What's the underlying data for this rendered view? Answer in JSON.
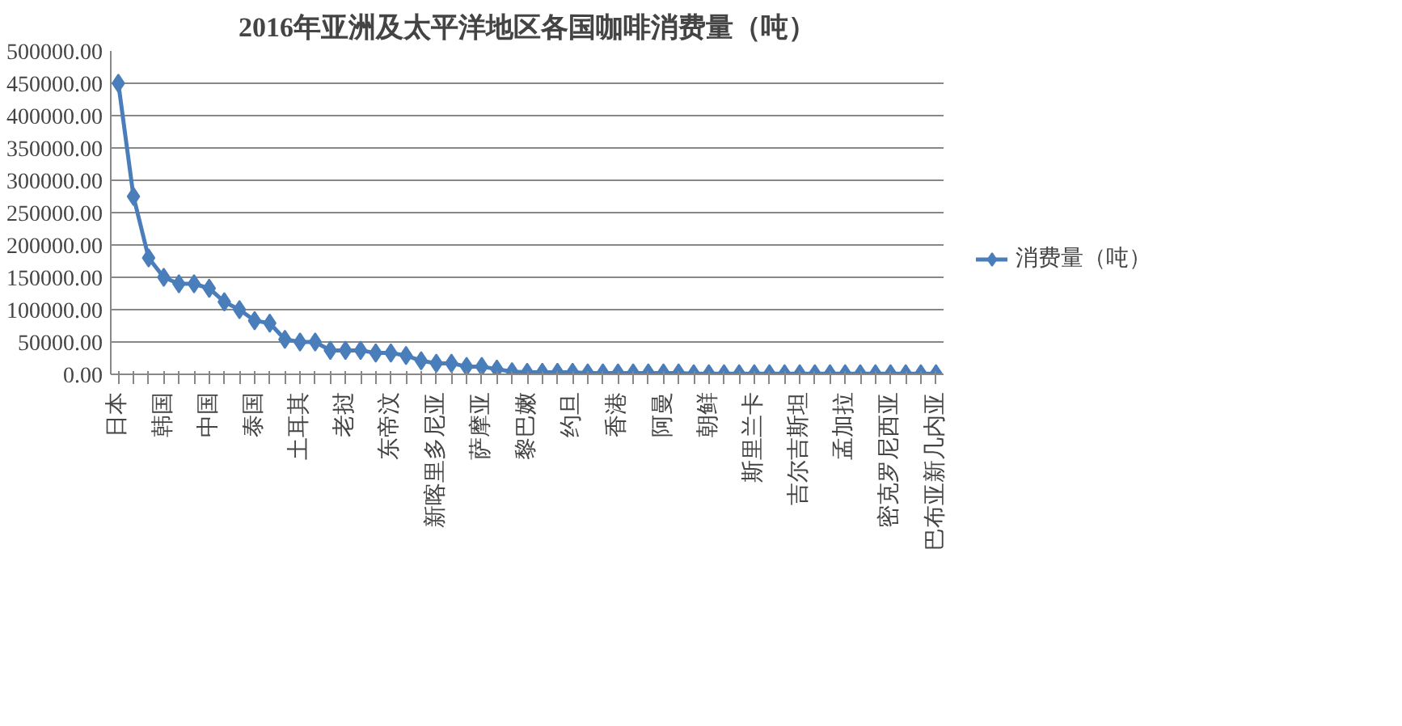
{
  "chart_data": {
    "type": "line",
    "title": "2016年亚洲及太平洋地区各国咖啡消费量（吨）",
    "categories": [
      "日本",
      null,
      null,
      "韩国",
      null,
      null,
      "中国",
      null,
      null,
      "泰国",
      null,
      null,
      "土耳其",
      null,
      null,
      "老挝",
      null,
      null,
      "东帝汶",
      null,
      null,
      "新喀里多尼亚",
      null,
      null,
      "萨摩亚",
      null,
      null,
      "黎巴嫩",
      null,
      null,
      "约旦",
      null,
      null,
      "香港",
      null,
      null,
      "阿曼",
      null,
      null,
      "朝鲜",
      null,
      null,
      "斯里兰卡",
      null,
      null,
      "吉尔吉斯坦",
      null,
      null,
      "孟加拉",
      null,
      null,
      "密克罗尼西亚",
      null,
      null,
      "巴布亚新几内亚"
    ],
    "series": [
      {
        "name": "消费量（吨）",
        "color": "#4a7ebb",
        "values": [
          450000,
          275000,
          180000,
          150000,
          140000,
          140000,
          133000,
          112000,
          100000,
          83000,
          79000,
          54000,
          50000,
          50000,
          37000,
          37000,
          37000,
          33000,
          33000,
          29000,
          21000,
          17000,
          17000,
          12000,
          12000,
          8000,
          4000,
          3000,
          3000,
          3000,
          3000,
          2000,
          2000,
          2000,
          2000,
          2000,
          2000,
          2000,
          1000,
          1000,
          1000,
          1000,
          1000,
          1000,
          1000,
          1000,
          1000,
          1000,
          1000,
          1000,
          1000,
          1000,
          1000,
          1000,
          1000
        ]
      }
    ],
    "ylim": [
      0,
      500000
    ],
    "yticks": [
      {
        "value": 0,
        "label": "0.00"
      },
      {
        "value": 50000,
        "label": "50000.00"
      },
      {
        "value": 100000,
        "label": "100000.00"
      },
      {
        "value": 150000,
        "label": "150000.00"
      },
      {
        "value": 200000,
        "label": "200000.00"
      },
      {
        "value": 250000,
        "label": "250000.00"
      },
      {
        "value": 300000,
        "label": "300000.00"
      },
      {
        "value": 350000,
        "label": "350000.00"
      },
      {
        "value": 400000,
        "label": "400000.00"
      },
      {
        "value": 450000,
        "label": "450000.00"
      },
      {
        "value": 500000,
        "label": "500000.00"
      }
    ],
    "grid": "y",
    "legend": "right",
    "marker": "diamond",
    "line_style": "solid"
  }
}
